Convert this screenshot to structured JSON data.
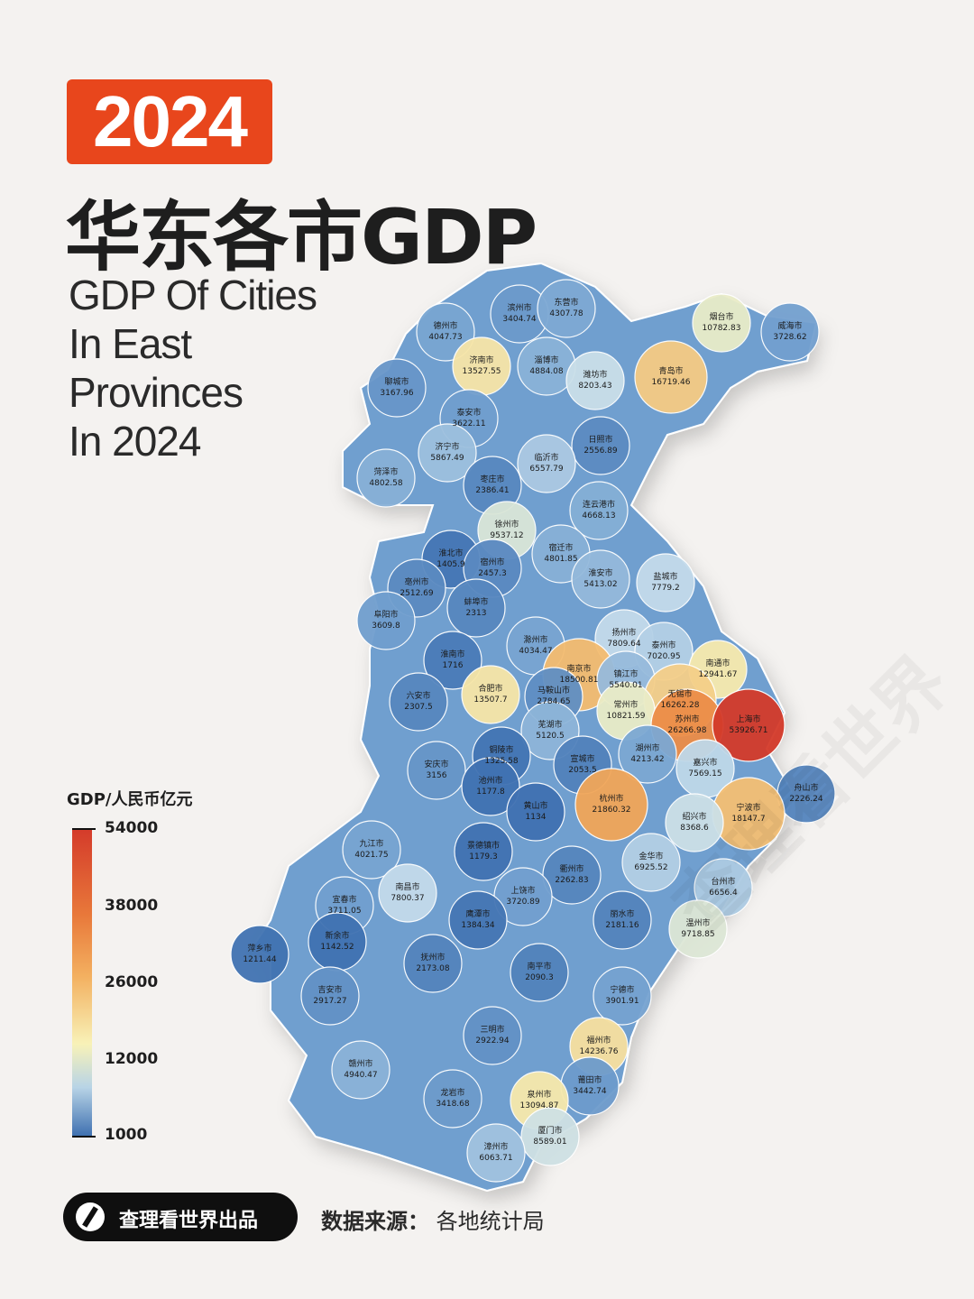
{
  "year": "2024",
  "title_cn": "华东各市GDP",
  "subtitle": [
    "GDP Of Cities",
    "In East",
    "Provinces",
    "In 2024"
  ],
  "legend": {
    "title": "GDP/人民币亿元",
    "ticks": [
      "54000",
      "38000",
      "26000",
      "12000",
      "1000"
    ],
    "min": 1000,
    "max": 54000
  },
  "footer": {
    "brand": "查理看世界出品",
    "source_label": "数据来源：",
    "source_value": "各地统计局"
  },
  "watermark": "查理看世界",
  "cities": [
    {
      "name": "滨州市",
      "gdp": 3404.74
    },
    {
      "name": "东营市",
      "gdp": 4307.78
    },
    {
      "name": "烟台市",
      "gdp": 10782.83
    },
    {
      "name": "威海市",
      "gdp": 3728.62
    },
    {
      "name": "德州市",
      "gdp": 4047.73
    },
    {
      "name": "淄博市",
      "gdp": 4884.08
    },
    {
      "name": "济南市",
      "gdp": 13527.55
    },
    {
      "name": "潍坊市",
      "gdp": 8203.43
    },
    {
      "name": "青岛市",
      "gdp": 16719.46
    },
    {
      "name": "聊城市",
      "gdp": 3167.96
    },
    {
      "name": "泰安市",
      "gdp": 3622.11
    },
    {
      "name": "日照市",
      "gdp": 2556.89
    },
    {
      "name": "济宁市",
      "gdp": 5867.49
    },
    {
      "name": "临沂市",
      "gdp": 6557.79
    },
    {
      "name": "菏泽市",
      "gdp": 4802.58
    },
    {
      "name": "枣庄市",
      "gdp": 2386.41
    },
    {
      "name": "连云港市",
      "gdp": 4668.13
    },
    {
      "name": "徐州市",
      "gdp": 9537.12
    },
    {
      "name": "淮北市",
      "gdp": 1405.9
    },
    {
      "name": "宿州市",
      "gdp": 2457.3
    },
    {
      "name": "宿迁市",
      "gdp": 4801.85
    },
    {
      "name": "亳州市",
      "gdp": 2512.69
    },
    {
      "name": "淮安市",
      "gdp": 5413.02
    },
    {
      "name": "盐城市",
      "gdp": 7779.2
    },
    {
      "name": "蚌埠市",
      "gdp": 2313
    },
    {
      "name": "阜阳市",
      "gdp": 3609.8
    },
    {
      "name": "扬州市",
      "gdp": 7809.64
    },
    {
      "name": "泰州市",
      "gdp": 7020.95
    },
    {
      "name": "滁州市",
      "gdp": 4034.47
    },
    {
      "name": "淮南市",
      "gdp": 1716
    },
    {
      "name": "南通市",
      "gdp": 12941.67
    },
    {
      "name": "南京市",
      "gdp": 18500.81
    },
    {
      "name": "镇江市",
      "gdp": 5540.01
    },
    {
      "name": "合肥市",
      "gdp": 13507.7
    },
    {
      "name": "马鞍山市",
      "gdp": 2784.65
    },
    {
      "name": "无锡市",
      "gdp": 16262.28
    },
    {
      "name": "六安市",
      "gdp": 2307.5
    },
    {
      "name": "常州市",
      "gdp": 10821.59
    },
    {
      "name": "苏州市",
      "gdp": 26266.98
    },
    {
      "name": "上海市",
      "gdp": 53926.71
    },
    {
      "name": "芜湖市",
      "gdp": 5120.5
    },
    {
      "name": "铜陵市",
      "gdp": 1325.58
    },
    {
      "name": "湖州市",
      "gdp": 4213.42
    },
    {
      "name": "宣城市",
      "gdp": 2053.5
    },
    {
      "name": "嘉兴市",
      "gdp": 7569.15
    },
    {
      "name": "安庆市",
      "gdp": 3156
    },
    {
      "name": "池州市",
      "gdp": 1177.8
    },
    {
      "name": "舟山市",
      "gdp": 2226.24
    },
    {
      "name": "杭州市",
      "gdp": 21860.32
    },
    {
      "name": "黄山市",
      "gdp": 1134
    },
    {
      "name": "宁波市",
      "gdp": 18147.7
    },
    {
      "name": "绍兴市",
      "gdp": 8368.6
    },
    {
      "name": "九江市",
      "gdp": 4021.75
    },
    {
      "name": "景德镇市",
      "gdp": 1179.3
    },
    {
      "name": "金华市",
      "gdp": 6925.52
    },
    {
      "name": "衢州市",
      "gdp": 2262.83
    },
    {
      "name": "南昌市",
      "gdp": 7800.37
    },
    {
      "name": "台州市",
      "gdp": 6656.4
    },
    {
      "name": "上饶市",
      "gdp": 3720.89
    },
    {
      "name": "宜春市",
      "gdp": 3711.05
    },
    {
      "name": "鹰潭市",
      "gdp": 1384.34
    },
    {
      "name": "丽水市",
      "gdp": 2181.16
    },
    {
      "name": "温州市",
      "gdp": 9718.85
    },
    {
      "name": "新余市",
      "gdp": 1142.52
    },
    {
      "name": "萍乡市",
      "gdp": 1211.44
    },
    {
      "name": "抚州市",
      "gdp": 2173.08
    },
    {
      "name": "南平市",
      "gdp": 2090.3
    },
    {
      "name": "吉安市",
      "gdp": 2917.27
    },
    {
      "name": "宁德市",
      "gdp": 3901.91
    },
    {
      "name": "福州市",
      "gdp": 14236.76
    },
    {
      "name": "三明市",
      "gdp": 2922.94
    },
    {
      "name": "赣州市",
      "gdp": 4940.47
    },
    {
      "name": "莆田市",
      "gdp": 3442.74
    },
    {
      "name": "龙岩市",
      "gdp": 3418.68
    },
    {
      "name": "泉州市",
      "gdp": 13094.87
    },
    {
      "name": "厦门市",
      "gdp": 8589.01
    },
    {
      "name": "漳州市",
      "gdp": 6063.71
    }
  ]
}
